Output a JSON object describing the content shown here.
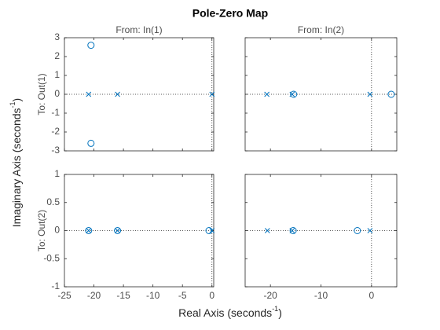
{
  "figure": {
    "title": "Pole-Zero Map",
    "xlabel": {
      "text": "Real  Axis  (seconds",
      "sup": "-1",
      "end": ")"
    },
    "ylabel": {
      "text": "Imaginary  Axis  (seconds",
      "sup": "-1",
      "end": ")"
    }
  },
  "chart_data": [
    {
      "type": "pole-zero",
      "title": "From: In(1)",
      "ylabel": "To: Out(1)",
      "xlim": [
        -25,
        0.3
      ],
      "xticks": [
        -25,
        -20,
        -15,
        -10,
        -5,
        0
      ],
      "xtick_labels": false,
      "ylim": [
        -3,
        3
      ],
      "yticks": [
        -3,
        -2,
        -1,
        0,
        1,
        2,
        3
      ],
      "ytick_labels": true,
      "zero_lines": true,
      "series": [
        {
          "marker": "x",
          "color": "#0072bd",
          "x": [
            -20.9,
            -16,
            0
          ],
          "y": [
            0,
            0,
            0
          ]
        },
        {
          "marker": "o",
          "color": "#0072bd",
          "x": [
            -20.5,
            -20.5
          ],
          "y": [
            2.6,
            -2.6
          ]
        }
      ]
    },
    {
      "type": "pole-zero",
      "title": "From: In(2)",
      "xlim": [
        -25,
        5
      ],
      "xticks": [
        -20,
        -10,
        0
      ],
      "xtick_labels": false,
      "ylim": [
        -3,
        3
      ],
      "yticks": [
        -3,
        -2,
        -1,
        0,
        1,
        2,
        3
      ],
      "ytick_labels": false,
      "zero_lines": true,
      "series": [
        {
          "marker": "x",
          "color": "#0072bd",
          "x": [
            -20.7,
            -15.7,
            -0.3
          ],
          "y": [
            0,
            0,
            0
          ]
        },
        {
          "marker": "o",
          "color": "#0072bd",
          "x": [
            -15.4,
            3.9
          ],
          "y": [
            0,
            0
          ]
        }
      ]
    },
    {
      "type": "pole-zero",
      "ylabel": "To: Out(2)",
      "xlim": [
        -25,
        0.3
      ],
      "xticks": [
        -25,
        -20,
        -15,
        -10,
        -5,
        0
      ],
      "xtick_labels": true,
      "ylim": [
        -1,
        1
      ],
      "yticks": [
        -1,
        -0.5,
        0,
        0.5,
        1
      ],
      "ytick_labels": true,
      "zero_lines": true,
      "series": [
        {
          "marker": "x",
          "color": "#0072bd",
          "x": [
            -20.9,
            -16,
            0
          ],
          "y": [
            0,
            0,
            0
          ]
        },
        {
          "marker": "o",
          "color": "#0072bd",
          "x": [
            -20.9,
            -16,
            -0.5
          ],
          "y": [
            0,
            0,
            0
          ]
        }
      ]
    },
    {
      "type": "pole-zero",
      "xlim": [
        -25,
        5
      ],
      "xticks": [
        -20,
        -10,
        0
      ],
      "xtick_labels": true,
      "ylim": [
        -1,
        1
      ],
      "yticks": [
        -1,
        -0.5,
        0,
        0.5,
        1
      ],
      "ytick_labels": false,
      "zero_lines": true,
      "series": [
        {
          "marker": "x",
          "color": "#0072bd",
          "x": [
            -20.6,
            -15.7,
            -0.3
          ],
          "y": [
            0,
            0,
            0
          ]
        },
        {
          "marker": "o",
          "color": "#0072bd",
          "x": [
            -15.5,
            -2.8
          ],
          "y": [
            0,
            0
          ]
        }
      ]
    }
  ]
}
